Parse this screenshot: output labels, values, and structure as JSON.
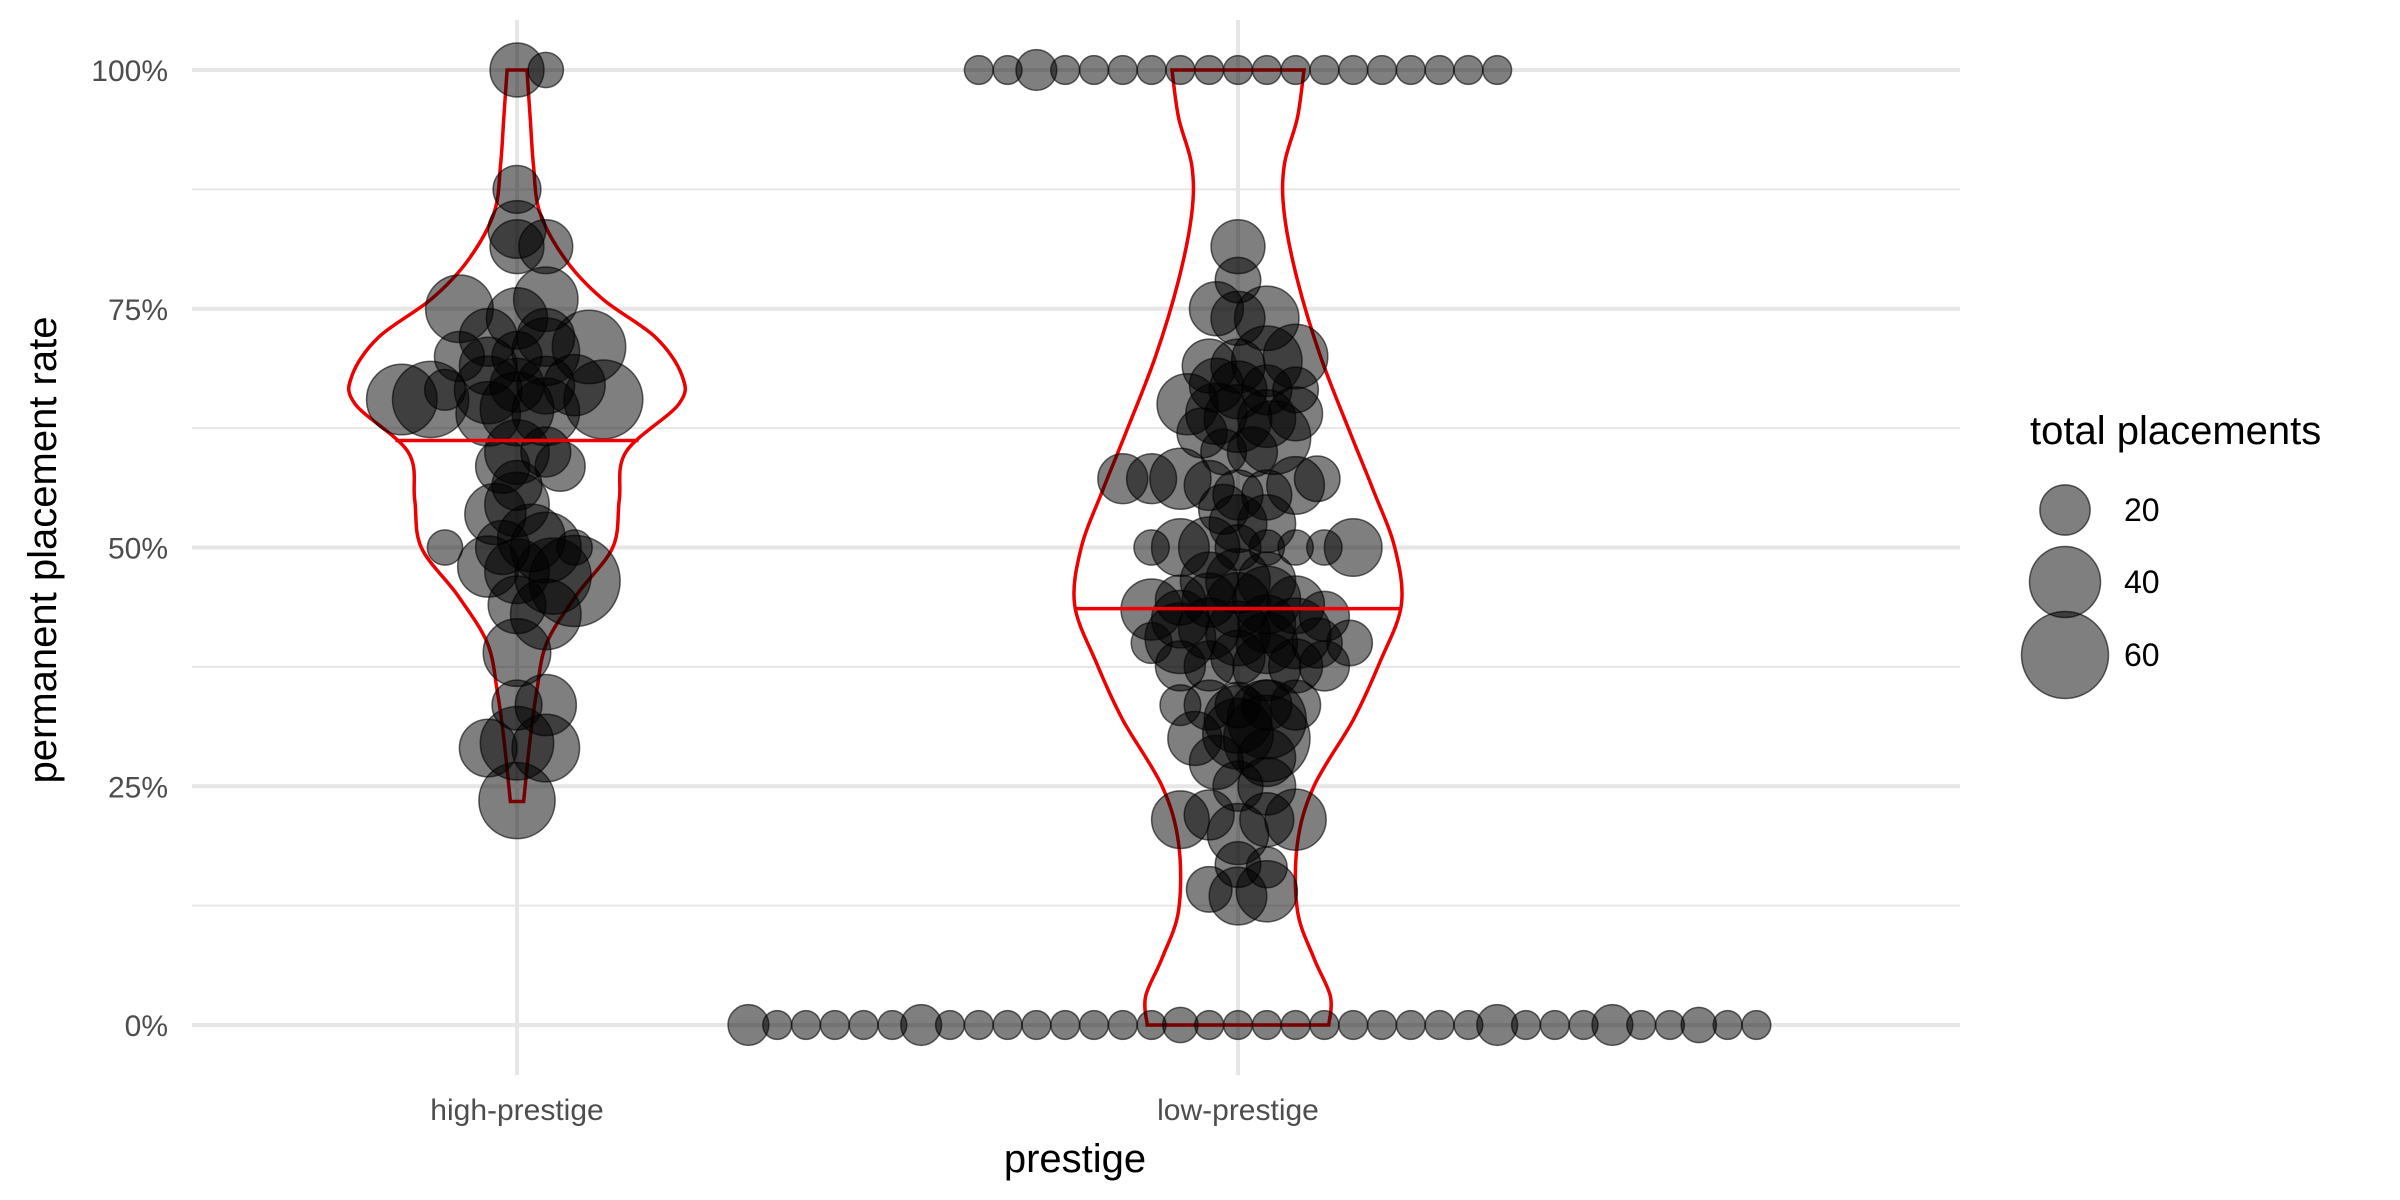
{
  "chart_data": {
    "type": "scatter",
    "subtype": "violin-with-jittered-bubbles",
    "title": "",
    "xlabel": "prestige",
    "ylabel": "permanent placement rate",
    "categories": [
      "high-prestige",
      "low-prestige"
    ],
    "y_ticks": [
      {
        "value": 0,
        "label": "0%"
      },
      {
        "value": 0.25,
        "label": "25%"
      },
      {
        "value": 0.5,
        "label": "50%"
      },
      {
        "value": 0.75,
        "label": "75%"
      },
      {
        "value": 1.0,
        "label": "100%"
      }
    ],
    "ylim": [
      -0.05,
      1.05
    ],
    "grid": true,
    "legend": {
      "title": "total placements",
      "position": "right",
      "sizes": [
        20,
        40,
        60
      ]
    },
    "colors": {
      "point": "#000000",
      "point_alpha": 0.5,
      "violin": "#ee0000",
      "grid": "#e6e6e6"
    },
    "medians": {
      "high-prestige": 0.612,
      "low-prestige": 0.436
    },
    "violins": [
      {
        "category": "high-prestige",
        "y_min": 0.234,
        "y_max": 1.0,
        "profile": [
          [
            0.234,
            0.04
          ],
          [
            0.3,
            0.08
          ],
          [
            0.35,
            0.12
          ],
          [
            0.4,
            0.18
          ],
          [
            0.45,
            0.36
          ],
          [
            0.5,
            0.58
          ],
          [
            0.55,
            0.62
          ],
          [
            0.6,
            0.66
          ],
          [
            0.65,
            0.98
          ],
          [
            0.68,
            1.0
          ],
          [
            0.72,
            0.84
          ],
          [
            0.76,
            0.52
          ],
          [
            0.8,
            0.3
          ],
          [
            0.85,
            0.14
          ],
          [
            0.9,
            0.1
          ],
          [
            0.95,
            0.08
          ],
          [
            1.0,
            0.06
          ]
        ]
      },
      {
        "category": "low-prestige",
        "y_min": 0.0,
        "y_max": 1.0,
        "profile": [
          [
            0.0,
            0.55
          ],
          [
            0.03,
            0.56
          ],
          [
            0.07,
            0.46
          ],
          [
            0.12,
            0.36
          ],
          [
            0.19,
            0.36
          ],
          [
            0.25,
            0.46
          ],
          [
            0.32,
            0.7
          ],
          [
            0.38,
            0.86
          ],
          [
            0.44,
            0.99
          ],
          [
            0.5,
            0.95
          ],
          [
            0.56,
            0.82
          ],
          [
            0.62,
            0.68
          ],
          [
            0.7,
            0.5
          ],
          [
            0.78,
            0.36
          ],
          [
            0.85,
            0.28
          ],
          [
            0.9,
            0.28
          ],
          [
            0.95,
            0.36
          ],
          [
            1.0,
            0.4
          ]
        ]
      }
    ],
    "series": [
      {
        "category": "high-prestige",
        "points": [
          [
            0.0,
            1.0,
            14
          ],
          [
            0.04,
            1.0,
            6
          ],
          [
            0.0,
            0.875,
            11
          ],
          [
            0.0,
            0.833,
            16
          ],
          [
            0.0,
            0.815,
            14
          ],
          [
            0.04,
            0.815,
            14
          ],
          [
            -0.08,
            0.75,
            22
          ],
          [
            0.04,
            0.76,
            20
          ],
          [
            0.0,
            0.74,
            18
          ],
          [
            -0.04,
            0.72,
            16
          ],
          [
            0.04,
            0.72,
            16
          ],
          [
            -0.08,
            0.7,
            12
          ],
          [
            0.0,
            0.7,
            12
          ],
          [
            0.04,
            0.705,
            22
          ],
          [
            0.1,
            0.71,
            26
          ],
          [
            -0.04,
            0.69,
            16
          ],
          [
            0.0,
            0.67,
            14
          ],
          [
            0.04,
            0.67,
            16
          ],
          [
            -0.1,
            0.665,
            8
          ],
          [
            -0.04,
            0.665,
            22
          ],
          [
            0.08,
            0.67,
            18
          ],
          [
            -0.16,
            0.655,
            24
          ],
          [
            -0.12,
            0.655,
            28
          ],
          [
            0.12,
            0.655,
            30
          ],
          [
            -0.04,
            0.64,
            20
          ],
          [
            0.0,
            0.645,
            26
          ],
          [
            0.04,
            0.642,
            22
          ],
          [
            0.0,
            0.6,
            20
          ],
          [
            -0.02,
            0.585,
            14
          ],
          [
            0.04,
            0.6,
            12
          ],
          [
            0.06,
            0.585,
            12
          ],
          [
            0.0,
            0.565,
            12
          ],
          [
            -0.03,
            0.535,
            18
          ],
          [
            0.0,
            0.545,
            20
          ],
          [
            -0.1,
            0.5,
            6
          ],
          [
            -0.02,
            0.5,
            14
          ],
          [
            0.02,
            0.51,
            22
          ],
          [
            0.04,
            0.5,
            24
          ],
          [
            0.08,
            0.5,
            6
          ],
          [
            -0.04,
            0.48,
            18
          ],
          [
            0.0,
            0.475,
            20
          ],
          [
            0.05,
            0.47,
            28
          ],
          [
            0.08,
            0.465,
            40
          ],
          [
            0.0,
            0.44,
            16
          ],
          [
            0.04,
            0.43,
            24
          ],
          [
            0.0,
            0.39,
            22
          ],
          [
            0.0,
            0.335,
            12
          ],
          [
            0.04,
            0.335,
            18
          ],
          [
            -0.04,
            0.29,
            16
          ],
          [
            0.0,
            0.295,
            26
          ],
          [
            0.04,
            0.29,
            22
          ],
          [
            0.0,
            0.235,
            28
          ]
        ]
      },
      {
        "category": "low-prestige",
        "points": [
          [
            -0.36,
            1.0,
            4
          ],
          [
            -0.32,
            1.0,
            4
          ],
          [
            -0.28,
            1.0,
            8
          ],
          [
            -0.24,
            1.0,
            4
          ],
          [
            -0.2,
            1.0,
            4
          ],
          [
            -0.16,
            1.0,
            4
          ],
          [
            -0.12,
            1.0,
            4
          ],
          [
            -0.08,
            1.0,
            4
          ],
          [
            -0.04,
            1.0,
            4
          ],
          [
            0.0,
            1.0,
            4
          ],
          [
            0.04,
            1.0,
            4
          ],
          [
            0.08,
            1.0,
            4
          ],
          [
            0.12,
            1.0,
            4
          ],
          [
            0.16,
            1.0,
            4
          ],
          [
            0.2,
            1.0,
            4
          ],
          [
            0.24,
            1.0,
            4
          ],
          [
            0.28,
            1.0,
            4
          ],
          [
            0.32,
            1.0,
            4
          ],
          [
            0.36,
            1.0,
            4
          ],
          [
            0.0,
            0.815,
            14
          ],
          [
            0.0,
            0.78,
            10
          ],
          [
            -0.03,
            0.75,
            14
          ],
          [
            0.0,
            0.74,
            14
          ],
          [
            0.04,
            0.74,
            20
          ],
          [
            -0.04,
            0.69,
            14
          ],
          [
            0.0,
            0.69,
            14
          ],
          [
            0.04,
            0.695,
            24
          ],
          [
            0.08,
            0.7,
            20
          ],
          [
            -0.03,
            0.67,
            14
          ],
          [
            0.0,
            0.665,
            16
          ],
          [
            0.04,
            0.665,
            12
          ],
          [
            0.08,
            0.665,
            10
          ],
          [
            -0.07,
            0.65,
            18
          ],
          [
            -0.03,
            0.64,
            18
          ],
          [
            0.0,
            0.635,
            22
          ],
          [
            0.04,
            0.635,
            16
          ],
          [
            0.08,
            0.64,
            14
          ],
          [
            -0.05,
            0.62,
            12
          ],
          [
            0.05,
            0.615,
            26
          ],
          [
            -0.02,
            0.6,
            10
          ],
          [
            0.02,
            0.6,
            12
          ],
          [
            -0.16,
            0.572,
            12
          ],
          [
            -0.12,
            0.572,
            12
          ],
          [
            -0.08,
            0.572,
            18
          ],
          [
            -0.04,
            0.565,
            12
          ],
          [
            0.0,
            0.555,
            12
          ],
          [
            0.04,
            0.555,
            12
          ],
          [
            0.08,
            0.565,
            16
          ],
          [
            0.11,
            0.572,
            10
          ],
          [
            -0.02,
            0.54,
            12
          ],
          [
            0.0,
            0.525,
            16
          ],
          [
            0.04,
            0.525,
            16
          ],
          [
            -0.12,
            0.5,
            6
          ],
          [
            -0.08,
            0.5,
            16
          ],
          [
            -0.04,
            0.5,
            18
          ],
          [
            0.0,
            0.5,
            10
          ],
          [
            0.04,
            0.5,
            6
          ],
          [
            0.08,
            0.5,
            6
          ],
          [
            0.12,
            0.5,
            6
          ],
          [
            0.16,
            0.5,
            16
          ],
          [
            -0.04,
            0.465,
            16
          ],
          [
            0.0,
            0.465,
            20
          ],
          [
            0.04,
            0.465,
            16
          ],
          [
            -0.08,
            0.445,
            12
          ],
          [
            -0.04,
            0.445,
            14
          ],
          [
            0.0,
            0.44,
            20
          ],
          [
            0.04,
            0.445,
            22
          ],
          [
            0.08,
            0.44,
            16
          ],
          [
            -0.12,
            0.435,
            18
          ],
          [
            -0.08,
            0.425,
            16
          ],
          [
            -0.04,
            0.415,
            18
          ],
          [
            0.0,
            0.41,
            20
          ],
          [
            0.04,
            0.42,
            16
          ],
          [
            0.08,
            0.41,
            24
          ],
          [
            0.12,
            0.428,
            12
          ],
          [
            -0.12,
            0.4,
            8
          ],
          [
            -0.08,
            0.405,
            24
          ],
          [
            0.04,
            0.4,
            18
          ],
          [
            0.11,
            0.4,
            12
          ],
          [
            0.155,
            0.4,
            10
          ],
          [
            -0.08,
            0.376,
            12
          ],
          [
            -0.04,
            0.376,
            12
          ],
          [
            0.0,
            0.385,
            14
          ],
          [
            0.04,
            0.375,
            22
          ],
          [
            0.08,
            0.376,
            14
          ],
          [
            0.12,
            0.376,
            12
          ],
          [
            -0.08,
            0.335,
            8
          ],
          [
            -0.04,
            0.335,
            12
          ],
          [
            0.0,
            0.335,
            10
          ],
          [
            0.04,
            0.335,
            12
          ],
          [
            0.08,
            0.335,
            12
          ],
          [
            0.0,
            0.32,
            22
          ],
          [
            0.04,
            0.32,
            30
          ],
          [
            -0.06,
            0.3,
            14
          ],
          [
            0.0,
            0.305,
            24
          ],
          [
            0.04,
            0.3,
            36
          ],
          [
            -0.03,
            0.275,
            14
          ],
          [
            0.04,
            0.28,
            16
          ],
          [
            0.0,
            0.25,
            12
          ],
          [
            0.04,
            0.25,
            16
          ],
          [
            -0.08,
            0.215,
            16
          ],
          [
            -0.04,
            0.22,
            12
          ],
          [
            0.0,
            0.2,
            18
          ],
          [
            0.04,
            0.215,
            14
          ],
          [
            0.08,
            0.215,
            18
          ],
          [
            0.0,
            0.168,
            10
          ],
          [
            0.04,
            0.165,
            8
          ],
          [
            -0.04,
            0.142,
            10
          ],
          [
            0.0,
            0.135,
            16
          ],
          [
            0.04,
            0.14,
            18
          ],
          [
            -0.68,
            0.0,
            8
          ],
          [
            -0.64,
            0.0,
            4
          ],
          [
            -0.6,
            0.0,
            4
          ],
          [
            -0.56,
            0.0,
            4
          ],
          [
            -0.52,
            0.0,
            4
          ],
          [
            -0.48,
            0.0,
            4
          ],
          [
            -0.44,
            0.0,
            8
          ],
          [
            -0.4,
            0.0,
            4
          ],
          [
            -0.36,
            0.0,
            4
          ],
          [
            -0.32,
            0.0,
            4
          ],
          [
            -0.28,
            0.0,
            4
          ],
          [
            -0.24,
            0.0,
            4
          ],
          [
            -0.2,
            0.0,
            4
          ],
          [
            -0.16,
            0.0,
            4
          ],
          [
            -0.12,
            0.0,
            4
          ],
          [
            -0.08,
            0.0,
            6
          ],
          [
            -0.04,
            0.0,
            4
          ],
          [
            0.0,
            0.0,
            4
          ],
          [
            0.04,
            0.0,
            4
          ],
          [
            0.08,
            0.0,
            4
          ],
          [
            0.12,
            0.0,
            4
          ],
          [
            0.16,
            0.0,
            4
          ],
          [
            0.2,
            0.0,
            4
          ],
          [
            0.24,
            0.0,
            4
          ],
          [
            0.28,
            0.0,
            4
          ],
          [
            0.32,
            0.0,
            4
          ],
          [
            0.36,
            0.0,
            8
          ],
          [
            0.4,
            0.0,
            4
          ],
          [
            0.44,
            0.0,
            4
          ],
          [
            0.48,
            0.0,
            4
          ],
          [
            0.52,
            0.0,
            8
          ],
          [
            0.56,
            0.0,
            4
          ],
          [
            0.6,
            0.0,
            4
          ],
          [
            0.64,
            0.0,
            6
          ],
          [
            0.68,
            0.0,
            4
          ],
          [
            0.72,
            0.0,
            4
          ]
        ]
      }
    ]
  }
}
